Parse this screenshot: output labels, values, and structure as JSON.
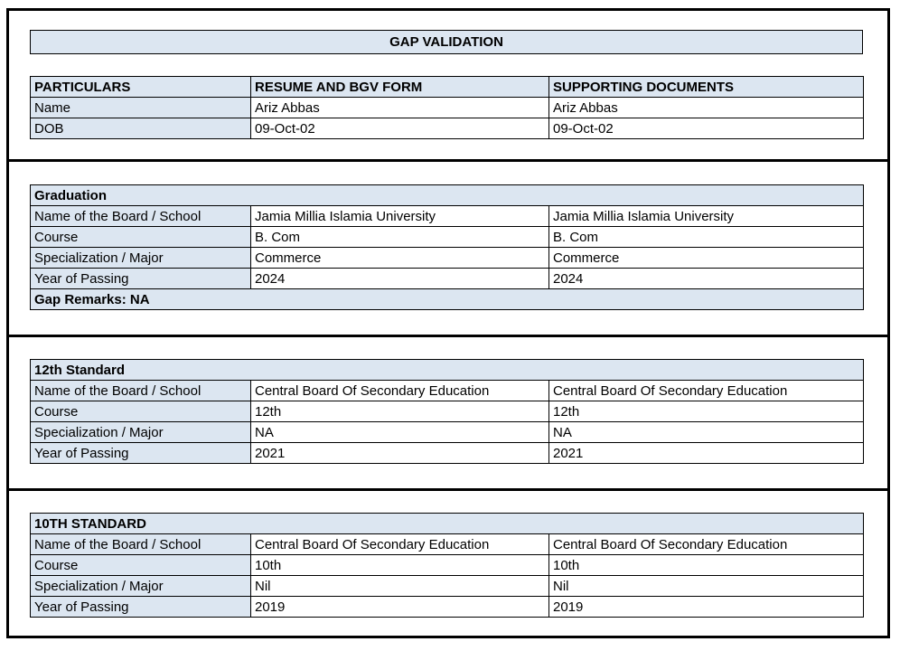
{
  "page": {
    "title": "GAP VALIDATION"
  },
  "identity_table": {
    "headers": [
      "PARTICULARS",
      "RESUME AND BGV FORM",
      "SUPPORTING DOCUMENTS"
    ],
    "rows": [
      [
        "Name",
        "Ariz Abbas",
        "Ariz Abbas"
      ],
      [
        "DOB",
        "09-Oct-02",
        "09-Oct-02"
      ]
    ]
  },
  "sections": [
    {
      "title": "Graduation",
      "rows": [
        [
          "Name of the Board / School",
          "Jamia Millia Islamia University",
          "Jamia Millia Islamia University"
        ],
        [
          "Course",
          "B. Com",
          "B. Com"
        ],
        [
          "Specialization / Major",
          "Commerce",
          "Commerce"
        ],
        [
          "Year of Passing",
          "2024",
          "2024"
        ]
      ],
      "gap_remarks": "Gap Remarks: NA"
    },
    {
      "title": "12th Standard",
      "rows": [
        [
          "Name of the Board / School",
          "Central Board Of Secondary Education",
          "Central Board Of Secondary Education"
        ],
        [
          "Course",
          "12th",
          "12th"
        ],
        [
          "Specialization / Major",
          "NA",
          "NA"
        ],
        [
          "Year of Passing",
          "2021",
          "2021"
        ]
      ]
    },
    {
      "title": "10TH STANDARD",
      "rows": [
        [
          "Name of the Board / School",
          "Central Board Of Secondary Education",
          "Central Board Of Secondary Education"
        ],
        [
          "Course",
          "10th",
          "10th"
        ],
        [
          "Specialization / Major",
          "Nil",
          "Nil"
        ],
        [
          "Year of Passing",
          "2019",
          "2019"
        ]
      ]
    }
  ],
  "colors": {
    "header_fill": "#dce6f1",
    "border": "#000000",
    "page_background": "#ffffff"
  }
}
